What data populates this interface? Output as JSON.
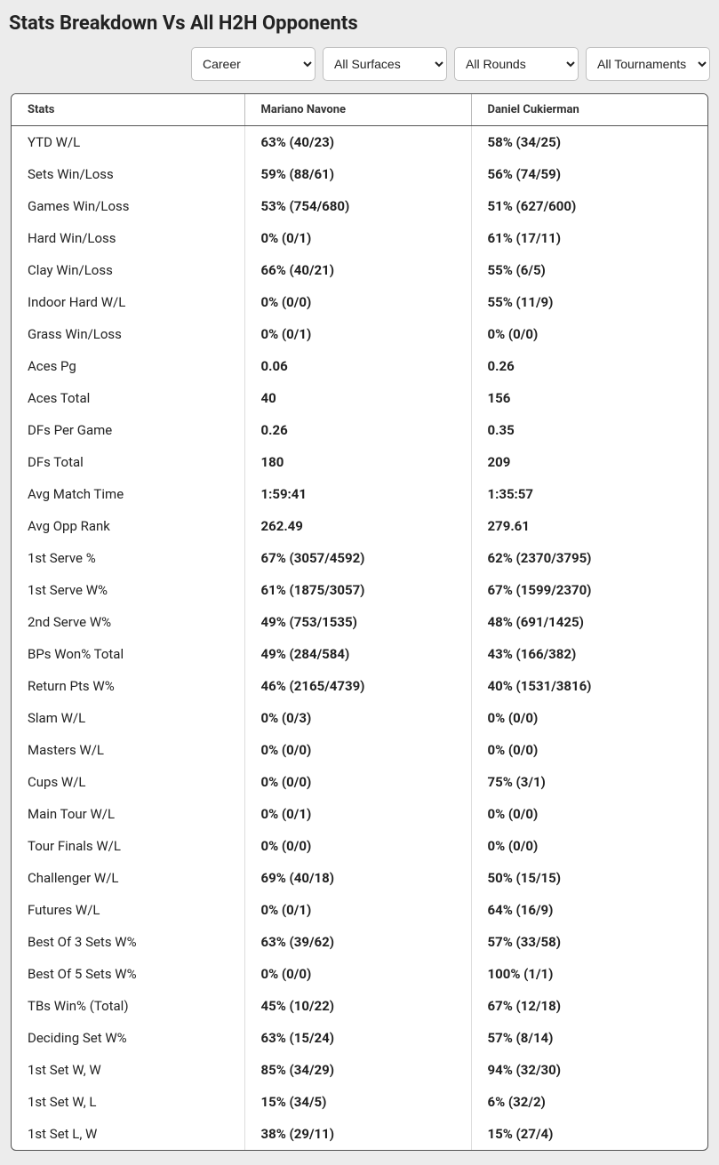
{
  "title": "Stats Breakdown Vs All H2H Opponents",
  "filters": {
    "career": "Career",
    "surfaces": "All Surfaces",
    "rounds": "All Rounds",
    "tournaments": "All Tournaments"
  },
  "table": {
    "headers": {
      "stats": "Stats",
      "player1": "Mariano Navone",
      "player2": "Daniel Cukierman"
    },
    "rows": [
      {
        "label": "YTD W/L",
        "p1": "63% (40/23)",
        "p2": "58% (34/25)"
      },
      {
        "label": "Sets Win/Loss",
        "p1": "59% (88/61)",
        "p2": "56% (74/59)"
      },
      {
        "label": "Games Win/Loss",
        "p1": "53% (754/680)",
        "p2": "51% (627/600)"
      },
      {
        "label": "Hard Win/Loss",
        "p1": "0% (0/1)",
        "p2": "61% (17/11)"
      },
      {
        "label": "Clay Win/Loss",
        "p1": "66% (40/21)",
        "p2": "55% (6/5)"
      },
      {
        "label": "Indoor Hard W/L",
        "p1": "0% (0/0)",
        "p2": "55% (11/9)"
      },
      {
        "label": "Grass Win/Loss",
        "p1": "0% (0/1)",
        "p2": "0% (0/0)"
      },
      {
        "label": "Aces Pg",
        "p1": "0.06",
        "p2": "0.26"
      },
      {
        "label": "Aces Total",
        "p1": "40",
        "p2": "156"
      },
      {
        "label": "DFs Per Game",
        "p1": "0.26",
        "p2": "0.35"
      },
      {
        "label": "DFs Total",
        "p1": "180",
        "p2": "209"
      },
      {
        "label": "Avg Match Time",
        "p1": "1:59:41",
        "p2": "1:35:57"
      },
      {
        "label": "Avg Opp Rank",
        "p1": "262.49",
        "p2": "279.61"
      },
      {
        "label": "1st Serve %",
        "p1": "67% (3057/4592)",
        "p2": "62% (2370/3795)"
      },
      {
        "label": "1st Serve W%",
        "p1": "61% (1875/3057)",
        "p2": "67% (1599/2370)"
      },
      {
        "label": "2nd Serve W%",
        "p1": "49% (753/1535)",
        "p2": "48% (691/1425)"
      },
      {
        "label": "BPs Won% Total",
        "p1": "49% (284/584)",
        "p2": "43% (166/382)"
      },
      {
        "label": "Return Pts W%",
        "p1": "46% (2165/4739)",
        "p2": "40% (1531/3816)"
      },
      {
        "label": "Slam W/L",
        "p1": "0% (0/3)",
        "p2": "0% (0/0)"
      },
      {
        "label": "Masters W/L",
        "p1": "0% (0/0)",
        "p2": "0% (0/0)"
      },
      {
        "label": "Cups W/L",
        "p1": "0% (0/0)",
        "p2": "75% (3/1)"
      },
      {
        "label": "Main Tour W/L",
        "p1": "0% (0/1)",
        "p2": "0% (0/0)"
      },
      {
        "label": "Tour Finals W/L",
        "p1": "0% (0/0)",
        "p2": "0% (0/0)"
      },
      {
        "label": "Challenger W/L",
        "p1": "69% (40/18)",
        "p2": "50% (15/15)"
      },
      {
        "label": "Futures W/L",
        "p1": "0% (0/1)",
        "p2": "64% (16/9)"
      },
      {
        "label": "Best Of 3 Sets W%",
        "p1": "63% (39/62)",
        "p2": "57% (33/58)"
      },
      {
        "label": "Best Of 5 Sets W%",
        "p1": "0% (0/0)",
        "p2": "100% (1/1)"
      },
      {
        "label": "TBs Win% (Total)",
        "p1": "45% (10/22)",
        "p2": "67% (12/18)"
      },
      {
        "label": "Deciding Set W%",
        "p1": "63% (15/24)",
        "p2": "57% (8/14)"
      },
      {
        "label": "1st Set W, W",
        "p1": "85% (34/29)",
        "p2": "94% (32/30)"
      },
      {
        "label": "1st Set W, L",
        "p1": "15% (34/5)",
        "p2": "6% (32/2)"
      },
      {
        "label": "1st Set L, W",
        "p1": "38% (29/11)",
        "p2": "15% (27/4)"
      }
    ]
  }
}
